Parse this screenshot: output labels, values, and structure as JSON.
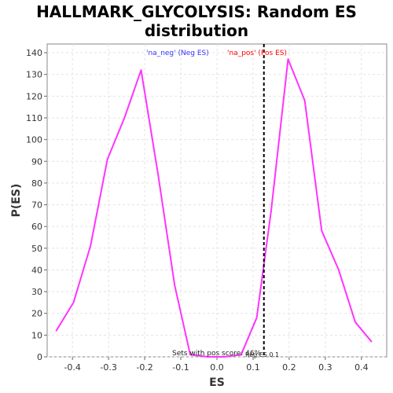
{
  "chart_data": {
    "type": "line",
    "title_lines": [
      "HALLMARK_GLYCOLYSIS: Random ES",
      "distribution"
    ],
    "xlabel": "ES",
    "ylabel": "P(ES)",
    "xlim": [
      -0.47,
      0.47
    ],
    "ylim": [
      0,
      144
    ],
    "x_ticks": [
      -0.4,
      -0.3,
      -0.2,
      -0.1,
      0.0,
      0.1,
      0.2,
      0.3,
      0.4
    ],
    "x_tick_labels": [
      "-0.4",
      "-0.3",
      "-0.2",
      "-0.1",
      "0.0",
      "0.1",
      "0.2",
      "0.3",
      "0.4"
    ],
    "y_ticks": [
      0,
      10,
      20,
      30,
      40,
      50,
      60,
      70,
      80,
      90,
      100,
      110,
      120,
      130,
      140
    ],
    "y_tick_labels": [
      "0",
      "10",
      "20",
      "30",
      "40",
      "50",
      "60",
      "70",
      "80",
      "90",
      "100",
      "110",
      "120",
      "130",
      "140"
    ],
    "grid": true,
    "series": [
      {
        "color": "#ff33ff",
        "x": [
          -0.445,
          -0.397,
          -0.35,
          -0.303,
          -0.256,
          -0.21,
          -0.163,
          -0.117,
          -0.074,
          -0.025,
          0.02,
          0.067,
          0.11,
          0.15,
          0.197,
          0.243,
          0.29,
          0.337,
          0.383,
          0.428
        ],
        "y": [
          12,
          25,
          51,
          91,
          110,
          132,
          84,
          33,
          1,
          0,
          0,
          1,
          18,
          67,
          137,
          118,
          58,
          40,
          16,
          7
        ]
      }
    ],
    "marker_line": {
      "x": 0.13,
      "color": "#000000",
      "style": "dashed"
    },
    "legend": [
      {
        "text": "'na_neg' (Neg ES)",
        "color": "#3333ff"
      },
      {
        "text": "'na_pos' (Pos ES)",
        "color": "#ff0000"
      }
    ],
    "annotation": "Sets with pos score: 46%",
    "annotation_tail": "Reg ES 0.1"
  }
}
